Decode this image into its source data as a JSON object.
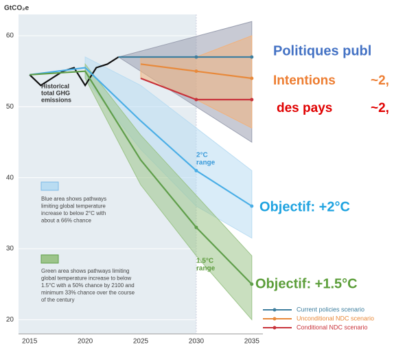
{
  "chart_data": {
    "type": "line",
    "y_axis_title": "GtCO₂e",
    "xlim": [
      2014,
      2036
    ],
    "ylim": [
      18,
      63
    ],
    "xticks": [
      2015,
      2020,
      2025,
      2030,
      2035
    ],
    "yticks": [
      20,
      30,
      40,
      50,
      60
    ],
    "shaded_until": 2030,
    "bands": [
      {
        "color": "#9a9fb0",
        "x": [
          2023,
          2035
        ],
        "low": [
          57,
          45
        ],
        "high": [
          57,
          62
        ]
      },
      {
        "color": "#f2b27c",
        "x": [
          2025,
          2030,
          2035
        ],
        "low": [
          54,
          51,
          47
        ],
        "high": [
          57,
          57,
          60
        ]
      },
      {
        "color": "#b9dcf2",
        "x": [
          2020,
          2025,
          2030,
          2035
        ],
        "low": [
          54,
          44,
          36,
          31.5
        ],
        "high": [
          57,
          53,
          47,
          41
        ]
      },
      {
        "color": "#9cc48a",
        "x": [
          2020,
          2025,
          2030,
          2035
        ],
        "low": [
          54,
          39,
          29,
          20
        ],
        "high": [
          56,
          46,
          37.5,
          29
        ]
      }
    ],
    "series": [
      {
        "color": "#111111",
        "x": [
          2015,
          2016,
          2017,
          2018,
          2019,
          2020,
          2021,
          2022,
          2023
        ],
        "values": [
          54.5,
          53,
          54,
          55,
          55.5,
          53,
          55.5,
          56,
          57
        ]
      },
      {
        "name": "Current policies scenario",
        "color": "#3f7f9f",
        "x": [
          2023,
          2030,
          2035
        ],
        "values": [
          57,
          57,
          57
        ]
      },
      {
        "name": "Unconditional NDC scenario",
        "color": "#e8893a",
        "x": [
          2025,
          2030,
          2035
        ],
        "values": [
          56,
          55,
          54
        ]
      },
      {
        "name": "Conditional NDC scenario",
        "color": "#c8323a",
        "x": [
          2025,
          2030,
          2035
        ],
        "values": [
          54,
          51,
          51
        ]
      },
      {
        "color": "#4aaee6",
        "x": [
          2015,
          2020,
          2025,
          2030,
          2035
        ],
        "values": [
          54.5,
          55.5,
          48,
          41,
          36
        ]
      },
      {
        "color": "#5f9e4a",
        "x": [
          2015,
          2020,
          2025,
          2030,
          2035
        ],
        "values": [
          54.5,
          55,
          42.5,
          33,
          25
        ]
      }
    ],
    "annotations": {
      "historical": [
        "Historical",
        "total GHG",
        "emissions"
      ],
      "range2": [
        "2°C",
        "range"
      ],
      "range15": [
        "1.5°C",
        "range"
      ],
      "blue_note": [
        "Blue area shows pathways",
        "limiting global temperature",
        "increase to below 2°C with",
        "about a 66% chance"
      ],
      "green_note": [
        "Green area shows pathways limiting",
        "global temperature increase to below",
        "1.5°C with a 50% chance by 2100 and",
        "minimum 33% chance over the course",
        "of the century"
      ],
      "policies": "Politiques publ",
      "intentions": "Intentions",
      "intentions_value": "~2,",
      "pays": "des pays",
      "pays_value": "~2,",
      "objectif2": "Objectif: +2°C",
      "objectif15": "Objectif: +1.5°C"
    }
  }
}
